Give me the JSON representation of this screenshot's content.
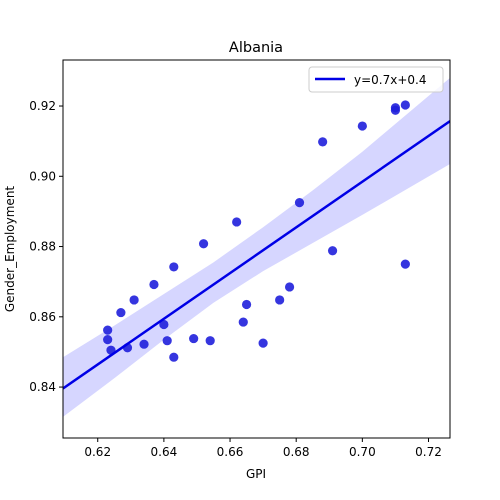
{
  "chart_data": {
    "type": "scatter",
    "title": "Albania",
    "xlabel": "GPI",
    "ylabel": "Gender_Employment",
    "xlim": [
      0.6095,
      0.7265
    ],
    "ylim": [
      0.8255,
      0.9331
    ],
    "xticks": [
      "0.62",
      "0.64",
      "0.66",
      "0.68",
      "0.70",
      "0.72"
    ],
    "xtick_values": [
      0.62,
      0.64,
      0.66,
      0.68,
      0.7,
      0.72
    ],
    "yticks": [
      "0.84",
      "0.86",
      "0.88",
      "0.90",
      "0.92"
    ],
    "ytick_values": [
      0.84,
      0.86,
      0.88,
      0.9,
      0.92
    ],
    "grid": false,
    "legend_position": "top-right",
    "point_color": "#1f1fdc",
    "line_color": "#0000e6",
    "band_color": "#d6d6ff",
    "points": [
      {
        "x": 0.623,
        "y": 0.8562
      },
      {
        "x": 0.623,
        "y": 0.8535
      },
      {
        "x": 0.624,
        "y": 0.8505
      },
      {
        "x": 0.627,
        "y": 0.8612
      },
      {
        "x": 0.629,
        "y": 0.8512
      },
      {
        "x": 0.631,
        "y": 0.8648
      },
      {
        "x": 0.634,
        "y": 0.8522
      },
      {
        "x": 0.637,
        "y": 0.8692
      },
      {
        "x": 0.64,
        "y": 0.8578
      },
      {
        "x": 0.641,
        "y": 0.8532
      },
      {
        "x": 0.643,
        "y": 0.8742
      },
      {
        "x": 0.643,
        "y": 0.8485
      },
      {
        "x": 0.649,
        "y": 0.8538
      },
      {
        "x": 0.652,
        "y": 0.8808
      },
      {
        "x": 0.654,
        "y": 0.8532
      },
      {
        "x": 0.662,
        "y": 0.887
      },
      {
        "x": 0.664,
        "y": 0.8585
      },
      {
        "x": 0.665,
        "y": 0.8635
      },
      {
        "x": 0.67,
        "y": 0.8525
      },
      {
        "x": 0.675,
        "y": 0.8648
      },
      {
        "x": 0.678,
        "y": 0.8685
      },
      {
        "x": 0.681,
        "y": 0.8925
      },
      {
        "x": 0.688,
        "y": 0.9098
      },
      {
        "x": 0.691,
        "y": 0.8788
      },
      {
        "x": 0.7,
        "y": 0.9143
      },
      {
        "x": 0.71,
        "y": 0.9195
      },
      {
        "x": 0.71,
        "y": 0.9188
      },
      {
        "x": 0.713,
        "y": 0.9203
      },
      {
        "x": 0.713,
        "y": 0.875
      }
    ],
    "regression": {
      "label": "y=0.7x+0.4",
      "line": {
        "x": [
          0.6095,
          0.7265
        ],
        "y": [
          0.8396,
          0.9157
        ]
      },
      "band_upper": {
        "x": [
          0.6095,
          0.625,
          0.64,
          0.655,
          0.67,
          0.685,
          0.7,
          0.7265
        ],
        "y": [
          0.8485,
          0.8575,
          0.8665,
          0.8755,
          0.8855,
          0.896,
          0.907,
          0.928
        ]
      },
      "band_lower": {
        "x": [
          0.6095,
          0.625,
          0.64,
          0.655,
          0.67,
          0.685,
          0.7,
          0.7265
        ],
        "y": [
          0.8315,
          0.8425,
          0.8535,
          0.864,
          0.873,
          0.881,
          0.889,
          0.9035
        ]
      }
    }
  }
}
